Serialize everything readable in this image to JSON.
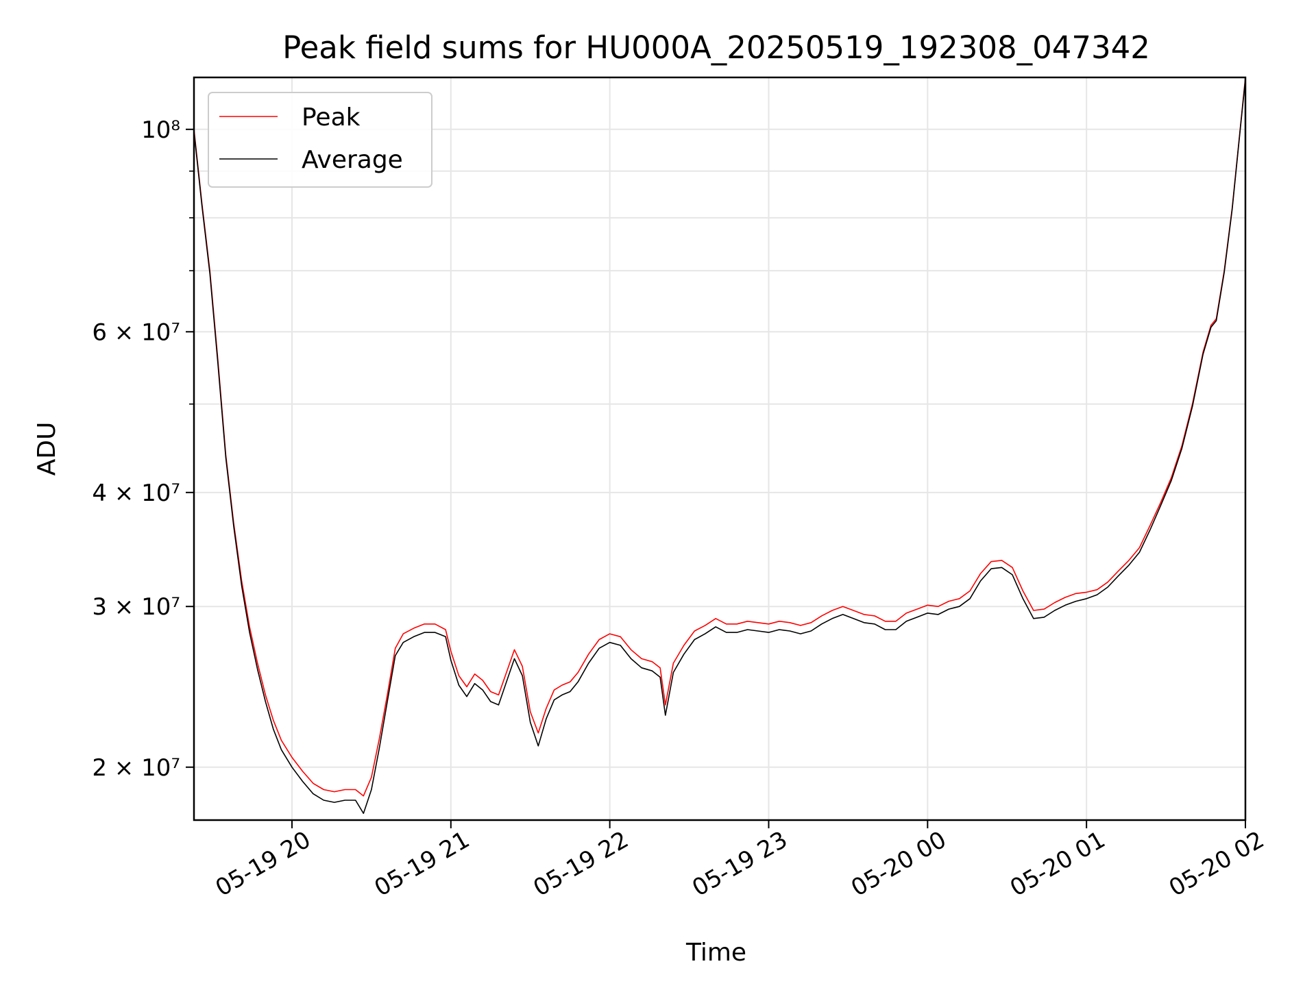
{
  "chart_data": {
    "type": "line",
    "title": "Peak field sums for HU000A_20250519_192308_047342",
    "xlabel": "Time",
    "ylabel": "ADU",
    "yscale": "log",
    "xlim": [
      "05-19 19:23",
      "05-20 02:00"
    ],
    "ylim": [
      17500000,
      114000000
    ],
    "grid": true,
    "legend_position": "upper-left",
    "x_ticks": [
      {
        "value": "05-19 20:00",
        "label": "05-19 20"
      },
      {
        "value": "05-19 21:00",
        "label": "05-19 21"
      },
      {
        "value": "05-19 22:00",
        "label": "05-19 22"
      },
      {
        "value": "05-19 23:00",
        "label": "05-19 23"
      },
      {
        "value": "05-20 00:00",
        "label": "05-20 00"
      },
      {
        "value": "05-20 01:00",
        "label": "05-20 01"
      },
      {
        "value": "05-20 02:00",
        "label": "05-20 02"
      }
    ],
    "y_ticks": [
      {
        "value": 20000000,
        "label": "2 × 10⁷"
      },
      {
        "value": 30000000,
        "label": "3 × 10⁷"
      },
      {
        "value": 40000000,
        "label": "4 × 10⁷"
      },
      {
        "value": 60000000,
        "label": "6 × 10⁷"
      },
      {
        "value": 100000000,
        "label": "10⁸"
      }
    ],
    "y_minor_ticks": [
      50000000,
      70000000,
      80000000,
      90000000
    ],
    "series": [
      {
        "name": "Peak",
        "color": "#ff0000",
        "points": [
          [
            "05-19 19:23",
            100000000
          ],
          [
            "05-19 19:26",
            83000000
          ],
          [
            "05-19 19:29",
            70000000
          ],
          [
            "05-19 19:32",
            56000000
          ],
          [
            "05-19 19:35",
            44000000
          ],
          [
            "05-19 19:38",
            37000000
          ],
          [
            "05-19 19:41",
            32000000
          ],
          [
            "05-19 19:44",
            28500000
          ],
          [
            "05-19 19:47",
            26000000
          ],
          [
            "05-19 19:50",
            24000000
          ],
          [
            "05-19 19:53",
            22500000
          ],
          [
            "05-19 19:56",
            21400000
          ],
          [
            "05-19 20:00",
            20500000
          ],
          [
            "05-19 20:04",
            19800000
          ],
          [
            "05-19 20:08",
            19200000
          ],
          [
            "05-19 20:12",
            18900000
          ],
          [
            "05-19 20:16",
            18800000
          ],
          [
            "05-19 20:20",
            18900000
          ],
          [
            "05-19 20:24",
            18900000
          ],
          [
            "05-19 20:27",
            18600000
          ],
          [
            "05-19 20:30",
            19500000
          ],
          [
            "05-19 20:33",
            21500000
          ],
          [
            "05-19 20:36",
            24000000
          ],
          [
            "05-19 20:39",
            27000000
          ],
          [
            "05-19 20:42",
            28000000
          ],
          [
            "05-19 20:46",
            28400000
          ],
          [
            "05-19 20:50",
            28700000
          ],
          [
            "05-19 20:54",
            28700000
          ],
          [
            "05-19 20:58",
            28300000
          ],
          [
            "05-19 21:00",
            26800000
          ],
          [
            "05-19 21:03",
            25200000
          ],
          [
            "05-19 21:06",
            24500000
          ],
          [
            "05-19 21:09",
            25300000
          ],
          [
            "05-19 21:12",
            24900000
          ],
          [
            "05-19 21:15",
            24200000
          ],
          [
            "05-19 21:18",
            24000000
          ],
          [
            "05-19 21:21",
            25400000
          ],
          [
            "05-19 21:24",
            26900000
          ],
          [
            "05-19 21:27",
            25800000
          ],
          [
            "05-19 21:30",
            23000000
          ],
          [
            "05-19 21:33",
            21800000
          ],
          [
            "05-19 21:36",
            23200000
          ],
          [
            "05-19 21:39",
            24300000
          ],
          [
            "05-19 21:42",
            24600000
          ],
          [
            "05-19 21:45",
            24800000
          ],
          [
            "05-19 21:48",
            25400000
          ],
          [
            "05-19 21:52",
            26600000
          ],
          [
            "05-19 21:56",
            27600000
          ],
          [
            "05-19 22:00",
            28000000
          ],
          [
            "05-19 22:04",
            27800000
          ],
          [
            "05-19 22:08",
            26900000
          ],
          [
            "05-19 22:12",
            26300000
          ],
          [
            "05-19 22:16",
            26100000
          ],
          [
            "05-19 22:19",
            25700000
          ],
          [
            "05-19 22:21",
            23400000
          ],
          [
            "05-19 22:24",
            26000000
          ],
          [
            "05-19 22:28",
            27200000
          ],
          [
            "05-19 22:32",
            28200000
          ],
          [
            "05-19 22:36",
            28600000
          ],
          [
            "05-19 22:40",
            29100000
          ],
          [
            "05-19 22:44",
            28700000
          ],
          [
            "05-19 22:48",
            28700000
          ],
          [
            "05-19 22:52",
            28900000
          ],
          [
            "05-19 22:56",
            28800000
          ],
          [
            "05-19 23:00",
            28700000
          ],
          [
            "05-19 23:04",
            28900000
          ],
          [
            "05-19 23:08",
            28800000
          ],
          [
            "05-19 23:12",
            28600000
          ],
          [
            "05-19 23:16",
            28800000
          ],
          [
            "05-19 23:20",
            29300000
          ],
          [
            "05-19 23:24",
            29700000
          ],
          [
            "05-19 23:28",
            30000000
          ],
          [
            "05-19 23:32",
            29700000
          ],
          [
            "05-19 23:36",
            29400000
          ],
          [
            "05-19 23:40",
            29300000
          ],
          [
            "05-19 23:44",
            28900000
          ],
          [
            "05-19 23:48",
            28900000
          ],
          [
            "05-19 23:52",
            29500000
          ],
          [
            "05-19 23:56",
            29800000
          ],
          [
            "05-20 00:00",
            30100000
          ],
          [
            "05-20 00:04",
            30000000
          ],
          [
            "05-20 00:08",
            30400000
          ],
          [
            "05-20 00:12",
            30600000
          ],
          [
            "05-20 00:16",
            31200000
          ],
          [
            "05-20 00:20",
            32600000
          ],
          [
            "05-20 00:24",
            33600000
          ],
          [
            "05-20 00:28",
            33700000
          ],
          [
            "05-20 00:32",
            33100000
          ],
          [
            "05-20 00:36",
            31200000
          ],
          [
            "05-20 00:40",
            29700000
          ],
          [
            "05-20 00:44",
            29800000
          ],
          [
            "05-20 00:48",
            30300000
          ],
          [
            "05-20 00:52",
            30700000
          ],
          [
            "05-20 00:56",
            31000000
          ],
          [
            "05-20 01:00",
            31100000
          ],
          [
            "05-20 01:04",
            31300000
          ],
          [
            "05-20 01:08",
            31900000
          ],
          [
            "05-20 01:12",
            32800000
          ],
          [
            "05-20 01:16",
            33700000
          ],
          [
            "05-20 01:20",
            34800000
          ],
          [
            "05-20 01:24",
            36800000
          ],
          [
            "05-20 01:28",
            39000000
          ],
          [
            "05-20 01:32",
            41500000
          ],
          [
            "05-20 01:36",
            45000000
          ],
          [
            "05-20 01:40",
            50000000
          ],
          [
            "05-20 01:44",
            57000000
          ],
          [
            "05-20 01:47",
            61000000
          ],
          [
            "05-20 01:49",
            62000000
          ],
          [
            "05-20 01:52",
            70000000
          ],
          [
            "05-20 01:55",
            82000000
          ],
          [
            "05-20 01:58",
            100000000
          ],
          [
            "05-20 02:00",
            114000000
          ]
        ]
      },
      {
        "name": "Average",
        "color": "#000000",
        "points": [
          [
            "05-19 19:23",
            99500000
          ],
          [
            "05-19 19:26",
            82500000
          ],
          [
            "05-19 19:29",
            69500000
          ],
          [
            "05-19 19:32",
            55500000
          ],
          [
            "05-19 19:35",
            43700000
          ],
          [
            "05-19 19:38",
            36700000
          ],
          [
            "05-19 19:41",
            31600000
          ],
          [
            "05-19 19:44",
            28100000
          ],
          [
            "05-19 19:47",
            25600000
          ],
          [
            "05-19 19:50",
            23600000
          ],
          [
            "05-19 19:53",
            22000000
          ],
          [
            "05-19 19:56",
            20900000
          ],
          [
            "05-19 20:00",
            20000000
          ],
          [
            "05-19 20:04",
            19300000
          ],
          [
            "05-19 20:08",
            18700000
          ],
          [
            "05-19 20:12",
            18400000
          ],
          [
            "05-19 20:16",
            18300000
          ],
          [
            "05-19 20:20",
            18400000
          ],
          [
            "05-19 20:24",
            18400000
          ],
          [
            "05-19 20:27",
            17800000
          ],
          [
            "05-19 20:30",
            18900000
          ],
          [
            "05-19 20:33",
            21000000
          ],
          [
            "05-19 20:36",
            23600000
          ],
          [
            "05-19 20:39",
            26500000
          ],
          [
            "05-19 20:42",
            27400000
          ],
          [
            "05-19 20:46",
            27800000
          ],
          [
            "05-19 20:50",
            28100000
          ],
          [
            "05-19 20:54",
            28100000
          ],
          [
            "05-19 20:58",
            27800000
          ],
          [
            "05-19 21:00",
            26200000
          ],
          [
            "05-19 21:03",
            24600000
          ],
          [
            "05-19 21:06",
            23900000
          ],
          [
            "05-19 21:09",
            24700000
          ],
          [
            "05-19 21:12",
            24300000
          ],
          [
            "05-19 21:15",
            23600000
          ],
          [
            "05-19 21:18",
            23400000
          ],
          [
            "05-19 21:21",
            24800000
          ],
          [
            "05-19 21:24",
            26300000
          ],
          [
            "05-19 21:27",
            25200000
          ],
          [
            "05-19 21:30",
            22400000
          ],
          [
            "05-19 21:33",
            21100000
          ],
          [
            "05-19 21:36",
            22600000
          ],
          [
            "05-19 21:39",
            23700000
          ],
          [
            "05-19 21:42",
            24000000
          ],
          [
            "05-19 21:45",
            24200000
          ],
          [
            "05-19 21:48",
            24800000
          ],
          [
            "05-19 21:52",
            26000000
          ],
          [
            "05-19 21:56",
            27000000
          ],
          [
            "05-19 22:00",
            27400000
          ],
          [
            "05-19 22:04",
            27200000
          ],
          [
            "05-19 22:08",
            26300000
          ],
          [
            "05-19 22:12",
            25700000
          ],
          [
            "05-19 22:16",
            25500000
          ],
          [
            "05-19 22:19",
            25100000
          ],
          [
            "05-19 22:21",
            22800000
          ],
          [
            "05-19 22:24",
            25400000
          ],
          [
            "05-19 22:28",
            26600000
          ],
          [
            "05-19 22:32",
            27600000
          ],
          [
            "05-19 22:36",
            28000000
          ],
          [
            "05-19 22:40",
            28500000
          ],
          [
            "05-19 22:44",
            28100000
          ],
          [
            "05-19 22:48",
            28100000
          ],
          [
            "05-19 22:52",
            28300000
          ],
          [
            "05-19 22:56",
            28200000
          ],
          [
            "05-19 23:00",
            28100000
          ],
          [
            "05-19 23:04",
            28300000
          ],
          [
            "05-19 23:08",
            28200000
          ],
          [
            "05-19 23:12",
            28000000
          ],
          [
            "05-19 23:16",
            28200000
          ],
          [
            "05-19 23:20",
            28700000
          ],
          [
            "05-19 23:24",
            29100000
          ],
          [
            "05-19 23:28",
            29400000
          ],
          [
            "05-19 23:32",
            29100000
          ],
          [
            "05-19 23:36",
            28800000
          ],
          [
            "05-19 23:40",
            28700000
          ],
          [
            "05-19 23:44",
            28300000
          ],
          [
            "05-19 23:48",
            28300000
          ],
          [
            "05-19 23:52",
            28900000
          ],
          [
            "05-19 23:56",
            29200000
          ],
          [
            "05-20 00:00",
            29500000
          ],
          [
            "05-20 00:04",
            29400000
          ],
          [
            "05-20 00:08",
            29800000
          ],
          [
            "05-20 00:12",
            30000000
          ],
          [
            "05-20 00:16",
            30600000
          ],
          [
            "05-20 00:20",
            32000000
          ],
          [
            "05-20 00:24",
            33000000
          ],
          [
            "05-20 00:28",
            33100000
          ],
          [
            "05-20 00:32",
            32500000
          ],
          [
            "05-20 00:36",
            30600000
          ],
          [
            "05-20 00:40",
            29100000
          ],
          [
            "05-20 00:44",
            29200000
          ],
          [
            "05-20 00:48",
            29700000
          ],
          [
            "05-20 00:52",
            30100000
          ],
          [
            "05-20 00:56",
            30400000
          ],
          [
            "05-20 01:00",
            30600000
          ],
          [
            "05-20 01:04",
            30900000
          ],
          [
            "05-20 01:08",
            31500000
          ],
          [
            "05-20 01:12",
            32400000
          ],
          [
            "05-20 01:16",
            33300000
          ],
          [
            "05-20 01:20",
            34400000
          ],
          [
            "05-20 01:24",
            36400000
          ],
          [
            "05-20 01:28",
            38700000
          ],
          [
            "05-20 01:32",
            41200000
          ],
          [
            "05-20 01:36",
            44700000
          ],
          [
            "05-20 01:40",
            49700000
          ],
          [
            "05-20 01:44",
            56700000
          ],
          [
            "05-20 01:47",
            60700000
          ],
          [
            "05-20 01:49",
            61700000
          ],
          [
            "05-20 01:52",
            69700000
          ],
          [
            "05-20 01:55",
            81700000
          ],
          [
            "05-20 01:58",
            99700000
          ],
          [
            "05-20 02:00",
            113500000
          ]
        ]
      }
    ]
  }
}
